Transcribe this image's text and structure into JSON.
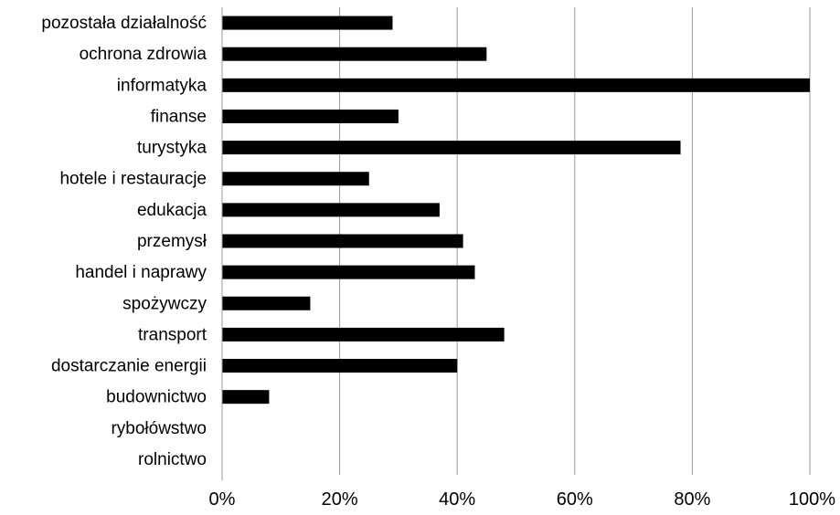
{
  "chart_data": {
    "type": "bar",
    "orientation": "horizontal",
    "categories": [
      "pozostała działalność",
      "ochrona zdrowia",
      "informatyka",
      "finanse",
      "turystyka",
      "hotele i restauracje",
      "edukacja",
      "przemysł",
      "handel i naprawy",
      "spożywczy",
      "transport",
      "dostarczanie energii",
      "budownictwo",
      "rybołówstwo",
      "rolnictwo"
    ],
    "values": [
      0.29,
      0.45,
      1.0,
      0.3,
      0.78,
      0.25,
      0.37,
      0.41,
      0.43,
      0.15,
      0.48,
      0.4,
      0.08,
      0.0,
      0.0
    ],
    "xlim": [
      0,
      1
    ],
    "xticks": [
      "0%",
      "20%",
      "40%",
      "60%",
      "80%",
      "100%"
    ],
    "grid": "vertical",
    "bar_color": "#000000",
    "grid_color": "#9a9a9a",
    "legend": "none"
  }
}
